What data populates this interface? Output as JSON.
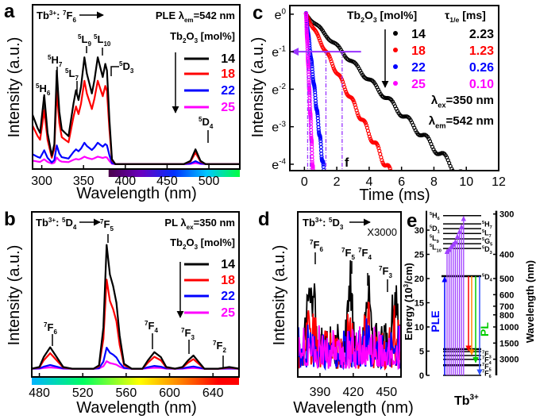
{
  "colors": {
    "c14": "#000000",
    "c18": "#ff0000",
    "c22": "#0000ff",
    "c25": "#ff00ff",
    "arrow": "#9933ff",
    "ple": "#0000ff",
    "pl": "#00cc00"
  },
  "chart_data": [
    {
      "panel": "a",
      "type": "line",
      "xlabel": "Wavelength (nm)",
      "ylabel": "Intensity (a.u.)",
      "xlim": [
        289,
        537
      ],
      "ylim": [
        0,
        1
      ],
      "xticks": [
        300,
        350,
        400,
        450,
        500
      ],
      "header": [
        [
          "Tb",
          "n"
        ],
        [
          "3+",
          "sup"
        ],
        [
          ": ",
          "n"
        ],
        [
          "7",
          "sup"
        ],
        [
          "F",
          "n"
        ],
        [
          "6",
          "sub"
        ]
      ],
      "mode": [
        [
          "PLE λ",
          "n"
        ],
        [
          "em",
          "sub"
        ],
        [
          "=542 nm",
          "n"
        ]
      ],
      "legend_title": [
        [
          "Tb",
          "n"
        ],
        [
          "2",
          "sub"
        ],
        [
          "O",
          "n"
        ],
        [
          "3",
          "sub"
        ],
        [
          " [mol%]",
          "n"
        ]
      ],
      "peak_labels": [
        [
          [
            "5",
            "sup"
          ],
          [
            "H",
            "n"
          ],
          [
            "6",
            "sub"
          ]
        ],
        [
          [
            "5",
            "sup"
          ],
          [
            "H",
            "n"
          ],
          [
            "7",
            "sub"
          ]
        ],
        [
          [
            "5",
            "sup"
          ],
          [
            "L",
            "n"
          ],
          [
            "7",
            "sub"
          ]
        ],
        [
          [
            "5",
            "sup"
          ],
          [
            "L",
            "n"
          ],
          [
            "9",
            "sub"
          ]
        ],
        [
          [
            "5",
            "sup"
          ],
          [
            "L",
            "n"
          ],
          [
            "10",
            "sub"
          ]
        ],
        [
          [
            "5",
            "sup"
          ],
          [
            "D",
            "n"
          ],
          [
            "3",
            "sub"
          ]
        ],
        [
          [
            "5",
            "sup"
          ],
          [
            "D",
            "n"
          ],
          [
            "4",
            "sub"
          ]
        ]
      ],
      "x": [
        289,
        295,
        298,
        303,
        307,
        312,
        315,
        318,
        321,
        324,
        328,
        332,
        338,
        341,
        344,
        347,
        351,
        354,
        357,
        360,
        363,
        367,
        370,
        373,
        376,
        378,
        381,
        384,
        388,
        470,
        478,
        484,
        490,
        496,
        537
      ],
      "y14": [
        0.33,
        0.25,
        0.22,
        0.45,
        0.22,
        0.08,
        0.15,
        0.6,
        0.35,
        0.24,
        0.22,
        0.2,
        0.4,
        0.48,
        0.42,
        0.5,
        0.68,
        0.58,
        0.52,
        0.46,
        0.54,
        0.68,
        0.62,
        0.56,
        0.64,
        0.6,
        0.3,
        0.06,
        0.03,
        0.03,
        0.05,
        0.12,
        0.05,
        0.03,
        0.03
      ],
      "baseline": 0.03,
      "series": [
        {
          "name": "14",
          "scale": 1.0
        },
        {
          "name": "18",
          "scale": 0.78
        },
        {
          "name": "22",
          "scale": 0.2
        },
        {
          "name": "25",
          "scale": 0.07
        }
      ]
    },
    {
      "panel": "b",
      "type": "line",
      "xlabel": "Wavelength (nm)",
      "ylabel": "Intensity (a.u.)",
      "xlim": [
        473,
        664
      ],
      "ylim": [
        0,
        1
      ],
      "xticks": [
        480,
        520,
        560,
        600,
        640
      ],
      "header": [
        [
          "Tb",
          "n"
        ],
        [
          "3+",
          "sup"
        ],
        [
          ": ",
          "n"
        ],
        [
          "5",
          "sup"
        ],
        [
          "D",
          "n"
        ],
        [
          "4",
          "sub"
        ]
      ],
      "header_target": [
        [
          "7",
          "sup"
        ],
        [
          "F",
          "n"
        ],
        [
          "5",
          "sub"
        ]
      ],
      "mode": [
        [
          "PL λ",
          "n"
        ],
        [
          "ex",
          "sub"
        ],
        [
          "=350 nm",
          "n"
        ]
      ],
      "legend_title": [
        [
          "Tb",
          "n"
        ],
        [
          "2",
          "sub"
        ],
        [
          "O",
          "n"
        ],
        [
          "3",
          "sub"
        ],
        [
          " [mol%]",
          "n"
        ]
      ],
      "peak_labels": [
        [
          [
            "7",
            "sup"
          ],
          [
            "F",
            "n"
          ],
          [
            "6",
            "sub"
          ]
        ],
        [
          [
            "7",
            "sup"
          ],
          [
            "F",
            "n"
          ],
          [
            "4",
            "sub"
          ]
        ],
        [
          [
            "7",
            "sup"
          ],
          [
            "F",
            "n"
          ],
          [
            "3",
            "sub"
          ]
        ],
        [
          [
            "7",
            "sup"
          ],
          [
            "F",
            "n"
          ],
          [
            "2",
            "sub"
          ]
        ]
      ],
      "x": [
        473,
        480,
        484,
        490,
        496,
        502,
        510,
        530,
        535,
        539,
        542,
        545,
        548,
        551,
        554,
        558,
        565,
        575,
        580,
        586,
        592,
        597,
        605,
        612,
        617,
        622,
        627,
        632,
        645,
        655,
        664
      ],
      "y14": [
        0.05,
        0.06,
        0.12,
        0.18,
        0.12,
        0.06,
        0.05,
        0.05,
        0.07,
        0.3,
        0.8,
        0.62,
        0.55,
        0.45,
        0.25,
        0.08,
        0.05,
        0.05,
        0.1,
        0.15,
        0.12,
        0.06,
        0.05,
        0.06,
        0.1,
        0.13,
        0.09,
        0.05,
        0.05,
        0.06,
        0.05
      ],
      "baseline": 0.05,
      "series": [
        {
          "name": "14",
          "scale": 1.0
        },
        {
          "name": "18",
          "scale": 0.72
        },
        {
          "name": "22",
          "scale": 0.17
        },
        {
          "name": "25",
          "scale": 0.06
        }
      ]
    },
    {
      "panel": "c",
      "type": "scatter",
      "xlabel": "Time (ms)",
      "ylabel": "Intensity (a.u.)",
      "xlim": [
        -0.9,
        12
      ],
      "ylim": [
        -4.17,
        0.23
      ],
      "xticks": [
        0,
        2,
        4,
        6,
        8,
        10,
        12
      ],
      "yticks": [
        0,
        -1,
        -2,
        -3,
        -4
      ],
      "ytick_base": "e",
      "legend_title": [
        [
          "Tb",
          "n"
        ],
        [
          "2",
          "sub"
        ],
        [
          "O",
          "n"
        ],
        [
          "3",
          "sub"
        ],
        [
          " [mol%]",
          "n"
        ]
      ],
      "tau_title": [
        [
          "τ",
          "n"
        ],
        [
          "1/e",
          "sub"
        ],
        [
          " [ms]",
          "n"
        ]
      ],
      "t0": 0.1,
      "series": [
        {
          "name": "14",
          "tau": 2.23,
          "tau_label": "2.23"
        },
        {
          "name": "18",
          "tau": 1.23,
          "tau_label": "1.23"
        },
        {
          "name": "22",
          "tau": 0.26,
          "tau_label": "0.26"
        },
        {
          "name": "25",
          "tau": 0.1,
          "tau_label": "0.10"
        }
      ],
      "ex": [
        [
          "λ",
          "n"
        ],
        [
          "ex",
          "sub"
        ],
        [
          "=350 nm",
          "n"
        ]
      ],
      "em": [
        [
          "λ",
          "n"
        ],
        [
          "em",
          "sub"
        ],
        [
          "=542 nm",
          "n"
        ]
      ],
      "f_label": "f"
    },
    {
      "panel": "d",
      "type": "line",
      "xlabel": "Wavelength (nm)",
      "ylabel": "Intensity (a.u.)",
      "xlim": [
        370,
        463
      ],
      "ylim": [
        0,
        1
      ],
      "xticks": [
        390,
        420,
        450
      ],
      "header": [
        [
          "Tb",
          "n"
        ],
        [
          "3+",
          "sup"
        ],
        [
          ": ",
          "n"
        ],
        [
          "5",
          "sup"
        ],
        [
          "D",
          "n"
        ],
        [
          "3",
          "sub"
        ]
      ],
      "multiplier": "X3000",
      "peak_labels": [
        [
          [
            "7",
            "sup"
          ],
          [
            "F",
            "n"
          ],
          [
            "6",
            "sub"
          ]
        ],
        [
          [
            "7",
            "sup"
          ],
          [
            "F",
            "n"
          ],
          [
            "5",
            "sub"
          ]
        ],
        [
          [
            "7",
            "sup"
          ],
          [
            "F",
            "n"
          ],
          [
            "4",
            "sub"
          ]
        ],
        [
          [
            "7",
            "sup"
          ],
          [
            "F",
            "n"
          ],
          [
            "3",
            "sub"
          ]
        ]
      ],
      "peaks": [
        [
          380,
          0.66
        ],
        [
          384,
          0.45
        ],
        [
          417,
          0.6
        ],
        [
          433,
          0.56
        ],
        [
          456,
          0.36
        ],
        [
          459,
          0.36
        ]
      ],
      "series": [
        {
          "name": "14",
          "scale": 1.0
        },
        {
          "name": "18",
          "scale": 0.55
        },
        {
          "name": "22",
          "scale": 0.2
        },
        {
          "name": "25",
          "scale": 0.12
        }
      ]
    },
    {
      "panel": "e",
      "type": "diagram",
      "ylabel": "Energy (10³/cm)",
      "ylabel2": "Wavelength (nm)",
      "yticks": [
        0,
        5,
        10,
        15,
        20,
        25,
        30
      ],
      "wl_ticks": [
        300,
        400,
        500,
        600,
        700,
        800,
        1000,
        1500,
        3000
      ],
      "lower_levels": [
        0,
        2.1,
        3.3,
        4.1,
        4.9,
        5.4
      ],
      "d4_level": 20.5,
      "upper_levels": [
        26.2,
        27.2,
        28.2,
        29.3,
        30.3,
        31.3,
        33.0
      ],
      "ple_targets": [
        26.2,
        26.6,
        27.2,
        27.7,
        28.2,
        29.3,
        30.3,
        31.3,
        33.0
      ],
      "pl_targets": [
        4.9,
        4.1,
        2.5,
        0
      ],
      "left_labels": [
        [
          [
            "5",
            "sup"
          ],
          [
            "H",
            "n"
          ],
          [
            "6",
            "sub"
          ]
        ],
        [
          [
            "5",
            "sup"
          ],
          [
            "D",
            "n"
          ],
          [
            "1",
            "sub"
          ]
        ],
        [
          [
            "5",
            "sup"
          ],
          [
            "L",
            "n"
          ],
          [
            "9",
            "sub"
          ]
        ],
        [
          [
            "5",
            "sup"
          ],
          [
            "L",
            "n"
          ],
          [
            "10",
            "sub"
          ]
        ]
      ],
      "right_labels": [
        [
          [
            "5",
            "sup"
          ],
          [
            "H",
            "n"
          ],
          [
            "7",
            "sub"
          ]
        ],
        [
          [
            "5",
            "sup"
          ],
          [
            "L",
            "n"
          ],
          [
            "7",
            "sub"
          ]
        ],
        [
          [
            "5",
            "sup"
          ],
          [
            "G",
            "n"
          ],
          [
            "5",
            "sub"
          ]
        ],
        [
          [
            "5",
            "sup"
          ],
          [
            "D",
            "n"
          ],
          [
            "3",
            "sub"
          ]
        ],
        [
          [
            "5",
            "sup"
          ],
          [
            "D",
            "n"
          ],
          [
            "4",
            "sub"
          ]
        ],
        [
          [
            "7",
            "sup"
          ],
          [
            "F",
            "n"
          ],
          [
            "3",
            "sub"
          ]
        ],
        [
          [
            "7",
            "sup"
          ],
          [
            "F",
            "n"
          ],
          [
            "4",
            "sub"
          ]
        ],
        [
          [
            "7",
            "sup"
          ],
          [
            "F",
            "n"
          ],
          [
            "5",
            "sub"
          ]
        ],
        [
          [
            "7",
            "sup"
          ],
          [
            "F",
            "n"
          ],
          [
            "6",
            "sub"
          ]
        ]
      ],
      "ple_label": "PLE",
      "pl_label": "PL",
      "ion": [
        [
          "Tb",
          "n"
        ],
        [
          "3+",
          "sup"
        ]
      ]
    }
  ],
  "panel_letters": [
    "a",
    "b",
    "c",
    "d",
    "e"
  ]
}
